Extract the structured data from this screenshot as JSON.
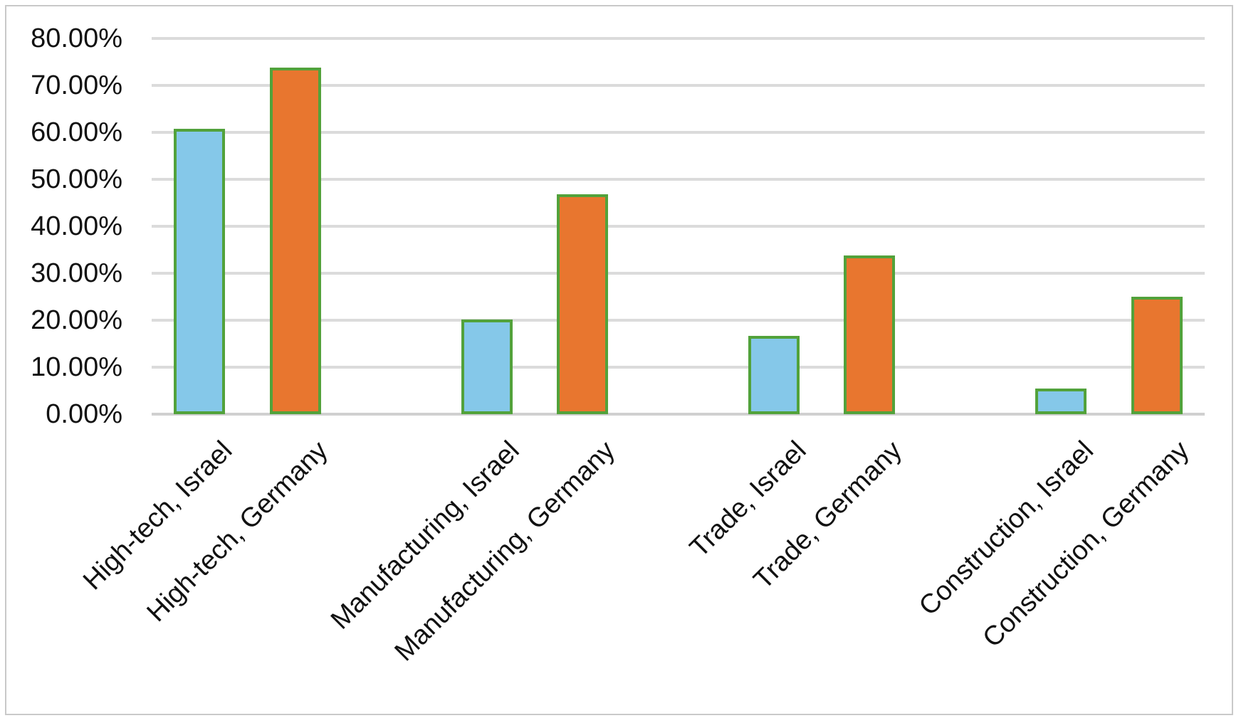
{
  "chart_data": {
    "type": "bar",
    "title": "",
    "xlabel": "",
    "ylabel": "",
    "categories": [
      "High-tech, Israel",
      "High-tech, Germany",
      "Manufacturing, Israel",
      "Manufacturing, Germany",
      "Trade, Israel",
      "Trade, Germany",
      "Construction, Israel",
      "Construction, Germany"
    ],
    "values": [
      60.7,
      73.8,
      20.1,
      46.8,
      16.7,
      33.8,
      5.5,
      25.0
    ],
    "unit": "percent",
    "ylim": [
      0,
      80
    ],
    "ytick_step": 10,
    "ytick_labels": [
      "0.00%",
      "10.00%",
      "20.00%",
      "30.00%",
      "40.00%",
      "50.00%",
      "60.00%",
      "70.00%",
      "80.00%"
    ],
    "grid": true,
    "legend_position": "none",
    "grouping": "pairs-with-gap-slot",
    "colors": {
      "israel_bar_fill": "#85c8e9",
      "germany_bar_fill": "#e8762f",
      "bar_border": "#52a23b",
      "gridline": "#dbdbdb",
      "axis_line": "#d0d0d0",
      "text": "#111111",
      "frame_border": "#c9c9c9",
      "background": "#ffffff"
    }
  }
}
